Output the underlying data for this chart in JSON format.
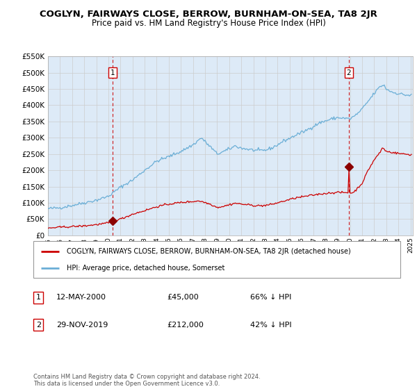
{
  "title": "COGLYN, FAIRWAYS CLOSE, BERROW, BURNHAM-ON-SEA, TA8 2JR",
  "subtitle": "Price paid vs. HM Land Registry's House Price Index (HPI)",
  "bg_color": "#ddeaf7",
  "hpi_color": "#6aaed6",
  "price_color": "#cc0000",
  "marker_color": "#8b0000",
  "dashed_color": "#cc0000",
  "grid_color": "#cccccc",
  "ylim": [
    0,
    550000
  ],
  "yticks": [
    0,
    50000,
    100000,
    150000,
    200000,
    250000,
    300000,
    350000,
    400000,
    450000,
    500000,
    550000
  ],
  "ytick_labels": [
    "£0",
    "£50K",
    "£100K",
    "£150K",
    "£200K",
    "£250K",
    "£300K",
    "£350K",
    "£400K",
    "£450K",
    "£500K",
    "£550K"
  ],
  "sale1_date": 2000.36,
  "sale1_price": 45000,
  "sale1_label": "1",
  "sale2_date": 2019.91,
  "sale2_price": 212000,
  "sale2_label": "2",
  "legend_label_red": "COGLYN, FAIRWAYS CLOSE, BERROW, BURNHAM-ON-SEA, TA8 2JR (detached house)",
  "legend_label_blue": "HPI: Average price, detached house, Somerset",
  "ann1_box": "1",
  "ann1_date": "12-MAY-2000",
  "ann1_price": "£45,000",
  "ann1_hpi": "66% ↓ HPI",
  "ann2_box": "2",
  "ann2_date": "29-NOV-2019",
  "ann2_price": "£212,000",
  "ann2_hpi": "42% ↓ HPI",
  "footer": "Contains HM Land Registry data © Crown copyright and database right 2024.\nThis data is licensed under the Open Government Licence v3.0.",
  "xtick_years": [
    1995,
    1996,
    1997,
    1998,
    1999,
    2000,
    2001,
    2002,
    2003,
    2004,
    2005,
    2006,
    2007,
    2008,
    2009,
    2010,
    2011,
    2012,
    2013,
    2014,
    2015,
    2016,
    2017,
    2018,
    2019,
    2020,
    2021,
    2022,
    2023,
    2024,
    2025
  ]
}
